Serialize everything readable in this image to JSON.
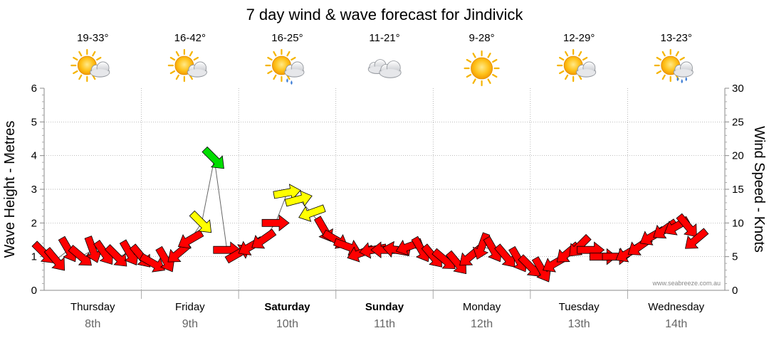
{
  "title": "7 day wind & wave forecast for Jindivick",
  "days": [
    {
      "day": "Thursday",
      "date": "8th",
      "temp": "19-33°",
      "icon": "partly-cloudy-icon",
      "bold": false
    },
    {
      "day": "Friday",
      "date": "9th",
      "temp": "16-42°",
      "icon": "partly-cloudy-icon",
      "bold": false
    },
    {
      "day": "Saturday",
      "date": "10th",
      "temp": "16-25°",
      "icon": "shower-icon",
      "bold": true
    },
    {
      "day": "Sunday",
      "date": "11th",
      "temp": "11-21°",
      "icon": "cloudy-icon",
      "bold": true
    },
    {
      "day": "Monday",
      "date": "12th",
      "temp": "9-28°",
      "icon": "sunny-icon",
      "bold": false
    },
    {
      "day": "Tuesday",
      "date": "13th",
      "temp": "12-29°",
      "icon": "partly-cloudy-icon",
      "bold": false
    },
    {
      "day": "Wednesday",
      "date": "14th",
      "temp": "13-23°",
      "icon": "rain-icon",
      "bold": false
    }
  ],
  "credit": "www.seabreeze.com.au",
  "colors": {
    "light": "#ff0000",
    "moderate": "#ffff00",
    "fresh": "#00dd00",
    "grid": "#999999"
  },
  "chart_data": {
    "type": "line",
    "ylabel_left": "Wave Height - Metres",
    "ylabel_right": "Wind Speed - Knots",
    "ylim_left": [
      0,
      6
    ],
    "ylim_right": [
      0,
      30
    ],
    "yticks_left": [
      "0",
      "1",
      "2",
      "3",
      "4",
      "5",
      "6"
    ],
    "yticks_right": [
      "0",
      "5",
      "10",
      "15",
      "20",
      "25",
      "30"
    ],
    "x_unit": "days from Thursday 00:00",
    "series": [
      {
        "name": "",
        "points": [
          [
            0.0,
            1.1,
            "light",
            135
          ],
          [
            0.12,
            0.9,
            "light",
            140
          ],
          [
            0.25,
            1.2,
            "light",
            150
          ],
          [
            0.38,
            1.0,
            "light",
            130
          ],
          [
            0.5,
            1.2,
            "light",
            160
          ],
          [
            0.62,
            1.1,
            "light",
            145
          ],
          [
            0.75,
            1.0,
            "light",
            135
          ],
          [
            0.88,
            1.1,
            "light",
            150
          ],
          [
            1.0,
            1.0,
            "light",
            140
          ],
          [
            1.12,
            0.8,
            "light",
            120
          ],
          [
            1.25,
            0.9,
            "light",
            150
          ],
          [
            1.38,
            1.1,
            "light",
            230
          ],
          [
            1.5,
            1.5,
            "light",
            240
          ],
          [
            1.62,
            2.0,
            "moderate",
            135
          ],
          [
            1.75,
            3.9,
            "fresh",
            135
          ],
          [
            1.88,
            1.2,
            "light",
            90
          ],
          [
            2.0,
            1.1,
            "light",
            60
          ],
          [
            2.12,
            1.3,
            "light",
            240
          ],
          [
            2.25,
            1.5,
            "light",
            235
          ],
          [
            2.38,
            2.0,
            "light",
            90
          ],
          [
            2.5,
            2.9,
            "moderate",
            80
          ],
          [
            2.62,
            2.7,
            "moderate",
            75
          ],
          [
            2.75,
            2.3,
            "moderate",
            250
          ],
          [
            2.88,
            1.8,
            "light",
            150
          ],
          [
            3.0,
            1.5,
            "light",
            120
          ],
          [
            3.12,
            1.3,
            "light",
            110
          ],
          [
            3.25,
            1.1,
            "light",
            250
          ],
          [
            3.38,
            1.2,
            "light",
            260
          ],
          [
            3.5,
            1.2,
            "light",
            270
          ],
          [
            3.62,
            1.2,
            "light",
            280
          ],
          [
            3.75,
            1.3,
            "light",
            250
          ],
          [
            3.88,
            1.2,
            "light",
            150
          ],
          [
            4.0,
            1.0,
            "light",
            140
          ],
          [
            4.12,
            0.9,
            "light",
            130
          ],
          [
            4.25,
            0.8,
            "light",
            140
          ],
          [
            4.38,
            1.0,
            "light",
            230
          ],
          [
            4.5,
            1.3,
            "light",
            200
          ],
          [
            4.62,
            1.2,
            "light",
            150
          ],
          [
            4.75,
            1.0,
            "light",
            140
          ],
          [
            4.88,
            0.9,
            "light",
            150
          ],
          [
            5.0,
            0.7,
            "light",
            135
          ],
          [
            5.12,
            0.6,
            "light",
            150
          ],
          [
            5.25,
            0.8,
            "light",
            240
          ],
          [
            5.38,
            1.1,
            "light",
            230
          ],
          [
            5.5,
            1.3,
            "light",
            225
          ],
          [
            5.62,
            1.2,
            "light",
            90
          ],
          [
            5.75,
            1.0,
            "light",
            90
          ],
          [
            5.88,
            1.0,
            "light",
            90
          ],
          [
            6.0,
            1.1,
            "light",
            240
          ],
          [
            6.12,
            1.3,
            "light",
            235
          ],
          [
            6.25,
            1.6,
            "light",
            240
          ],
          [
            6.38,
            1.8,
            "light",
            235
          ],
          [
            6.5,
            1.9,
            "light",
            240
          ],
          [
            6.62,
            1.9,
            "light",
            140
          ],
          [
            6.7,
            1.5,
            "light",
            230
          ]
        ]
      }
    ]
  }
}
